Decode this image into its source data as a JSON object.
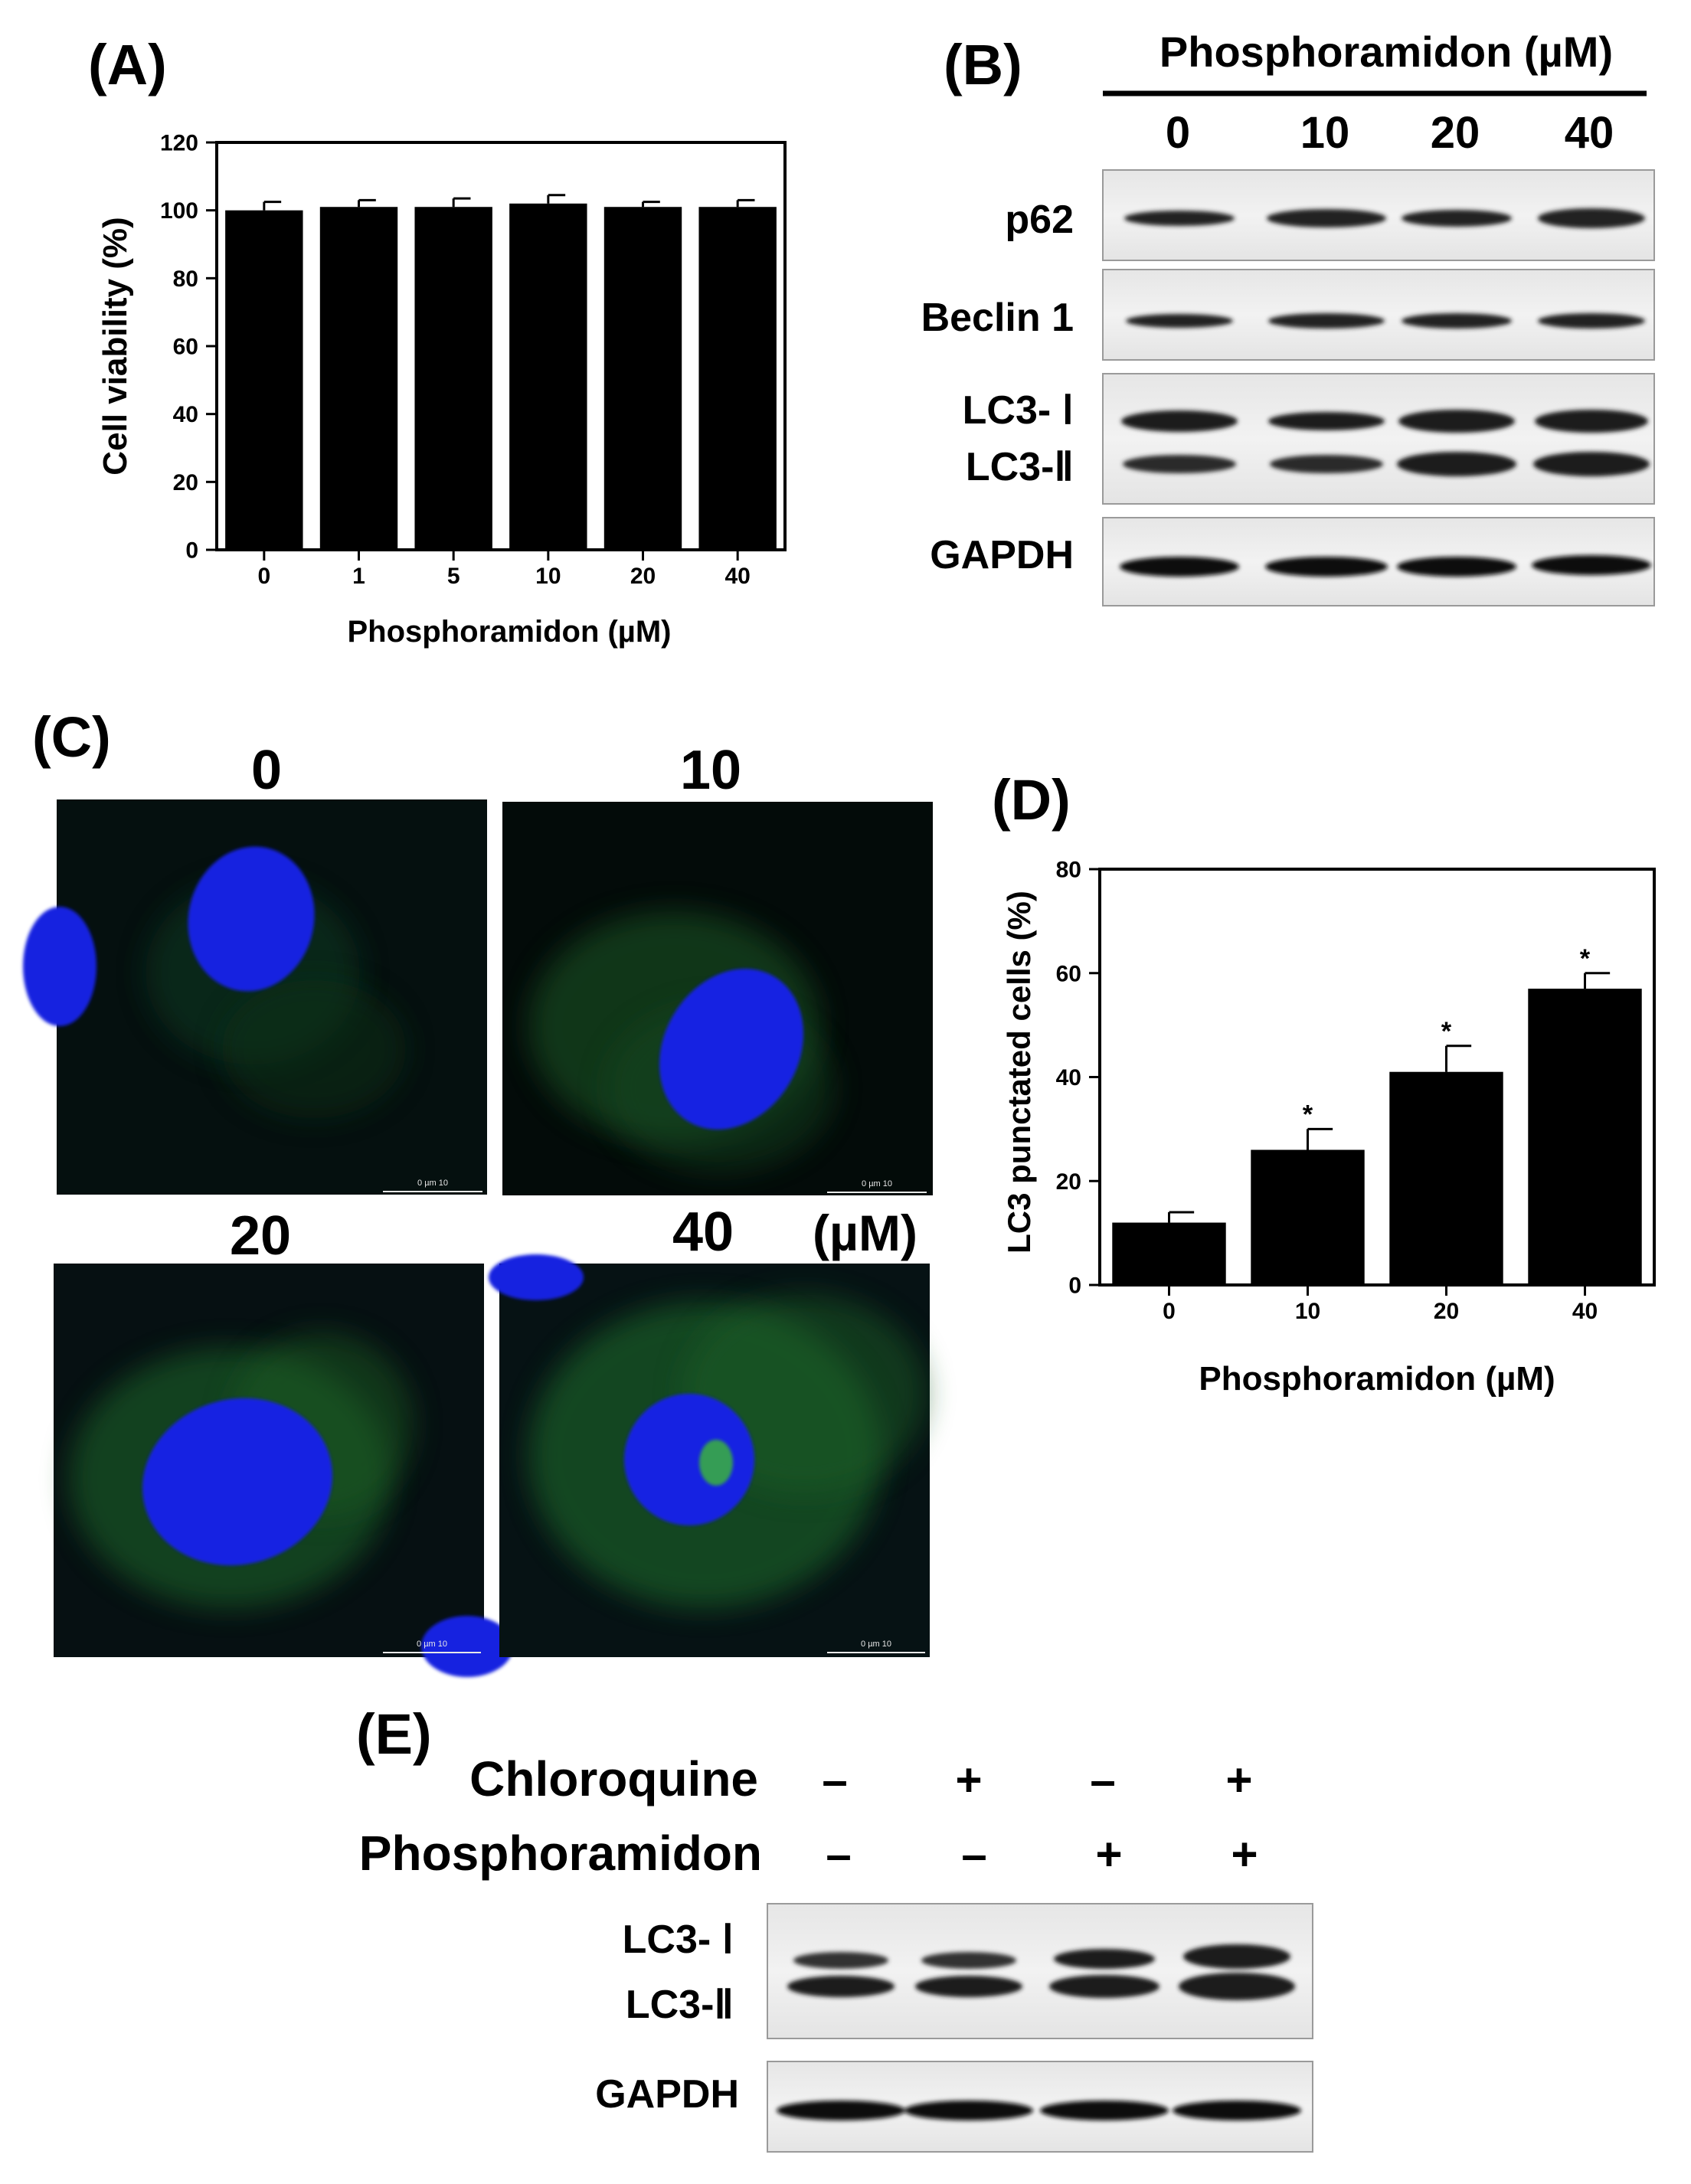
{
  "panels": {
    "A": {
      "letter": "(A)"
    },
    "B": {
      "letter": "(B)",
      "header": "Phosphoramidon (µM)",
      "lane_labels": [
        "0",
        "10",
        "20",
        "40"
      ],
      "rows": {
        "p62": "p62",
        "beclin": "Beclin 1",
        "lc3_1": "LC3- Ⅰ",
        "lc3_2": "LC3-Ⅱ",
        "gapdh": "GAPDH"
      }
    },
    "C": {
      "letter": "(C)",
      "tile_labels": [
        "0",
        "10",
        "20",
        "40"
      ],
      "unit": "(µM)",
      "scale_text": "0    µm    10"
    },
    "D": {
      "letter": "(D)"
    },
    "E": {
      "letter": "(E)",
      "rows": [
        {
          "label": "Chloroquine",
          "signs": [
            "–",
            "+",
            "–",
            "+"
          ]
        },
        {
          "label": "Phosphoramidon",
          "signs": [
            "–",
            "–",
            "+",
            "+"
          ]
        }
      ],
      "blot_rows": {
        "lc3_1": "LC3- Ⅰ",
        "lc3_2": "LC3-Ⅱ",
        "gapdh": "GAPDH"
      }
    }
  },
  "chart_data": [
    {
      "id": "A",
      "type": "bar",
      "categories": [
        "0",
        "1",
        "5",
        "10",
        "20",
        "40"
      ],
      "values": [
        100,
        101,
        101,
        102,
        101,
        101
      ],
      "errors": [
        2.5,
        2,
        2.5,
        2.5,
        1.5,
        2
      ],
      "xlabel": "Phosphoramidon (µM)",
      "ylabel": "Cell viability (%)",
      "ylim": [
        0,
        120
      ],
      "yticks": [
        0,
        20,
        40,
        60,
        80,
        100,
        120
      ],
      "annotations": [],
      "bar_color": "#000000"
    },
    {
      "id": "D",
      "type": "bar",
      "categories": [
        "0",
        "10",
        "20",
        "40"
      ],
      "values": [
        12,
        26,
        41,
        57
      ],
      "errors": [
        2,
        4,
        5,
        3
      ],
      "xlabel": "Phosphoramidon (µM)",
      "ylabel": "LC3 punctated cells (%)",
      "ylim": [
        0,
        80
      ],
      "yticks": [
        0,
        20,
        40,
        60,
        80
      ],
      "annotations": [
        "",
        "*",
        "*",
        "*"
      ],
      "bar_color": "#000000"
    }
  ]
}
